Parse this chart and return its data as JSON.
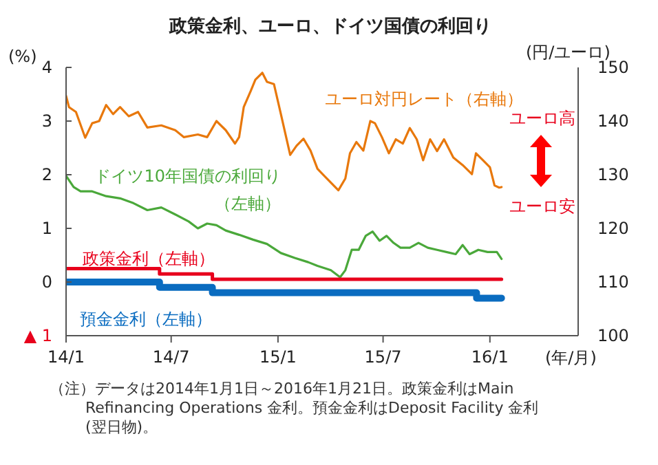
{
  "chart_data": {
    "type": "line",
    "title": "政策金利、ユーロ、ドイツ国債の利回り",
    "ylabel": "(%)",
    "y2label": "(円/ユーロ)",
    "xlabel": "(年/月)",
    "xlim": [
      "2014-01-01",
      "2016-06-01"
    ],
    "xticks": [
      {
        "value": "2014-01-01",
        "label": "14/1"
      },
      {
        "value": "2014-07-01",
        "label": "14/7"
      },
      {
        "value": "2015-01-01",
        "label": "15/1"
      },
      {
        "value": "2015-07-01",
        "label": "15/7"
      },
      {
        "value": "2016-01-01",
        "label": "16/1"
      }
    ],
    "ylim": [
      -1,
      4
    ],
    "yticks": [
      {
        "value": -1,
        "label": "▲ 1"
      },
      0,
      1,
      2,
      3,
      4
    ],
    "y2lim": [
      100,
      150
    ],
    "y2ticks": [
      100,
      110,
      120,
      130,
      140,
      150
    ],
    "legend": false,
    "marker": "none",
    "line_style": "solid",
    "series": [
      {
        "name": "ユーロ対円レート（右軸）",
        "type": "line",
        "axis": "y2",
        "color": "#e8780c",
        "x": [
          "2014-01-01",
          "2014-01-06",
          "2014-01-18",
          "2014-02-03",
          "2014-02-15",
          "2014-02-27",
          "2014-03-11",
          "2014-03-23",
          "2014-04-04",
          "2014-04-19",
          "2014-05-05",
          "2014-05-21",
          "2014-06-14",
          "2014-07-08",
          "2014-07-23",
          "2014-08-16",
          "2014-09-01",
          "2014-09-17",
          "2014-10-03",
          "2014-10-19",
          "2014-10-26",
          "2014-11-03",
          "2014-11-15",
          "2014-11-23",
          "2014-12-05",
          "2014-12-13",
          "2014-12-25",
          "2015-01-06",
          "2015-01-22",
          "2015-02-02",
          "2015-02-14",
          "2015-02-26",
          "2015-03-10",
          "2015-03-26",
          "2015-04-15",
          "2015-04-27",
          "2015-05-05",
          "2015-05-16",
          "2015-05-28",
          "2015-06-09",
          "2015-06-17",
          "2015-06-29",
          "2015-07-11",
          "2015-07-23",
          "2015-08-04",
          "2015-08-16",
          "2015-08-28",
          "2015-09-08",
          "2015-09-20",
          "2015-10-02",
          "2015-10-14",
          "2015-10-30",
          "2015-11-15",
          "2015-12-01",
          "2015-12-08",
          "2015-12-20",
          "2016-01-01",
          "2016-01-09",
          "2016-01-17",
          "2016-01-21"
        ],
        "values": [
          144.7,
          142.6,
          141.7,
          136.9,
          139.6,
          140.0,
          143.0,
          141.3,
          142.6,
          140.9,
          141.7,
          138.8,
          139.2,
          138.3,
          137.0,
          137.5,
          137.0,
          140.0,
          138.3,
          135.8,
          137.0,
          142.6,
          145.6,
          147.7,
          149.0,
          147.3,
          146.9,
          141.3,
          133.7,
          135.4,
          136.7,
          134.5,
          131.1,
          129.3,
          127.1,
          129.3,
          134.0,
          136.1,
          134.5,
          140.0,
          139.6,
          137.0,
          134.0,
          136.6,
          135.8,
          138.7,
          136.6,
          132.7,
          136.6,
          134.4,
          136.6,
          133.2,
          131.8,
          130.1,
          134.0,
          132.7,
          131.4,
          128.0,
          127.6,
          127.7
        ]
      },
      {
        "name": "ドイツ10年国債の利回り（左軸）",
        "type": "line",
        "color": "#4aa83a",
        "x": [
          "2014-01-01",
          "2014-01-14",
          "2014-01-26",
          "2014-02-15",
          "2014-03-11",
          "2014-04-04",
          "2014-04-27",
          "2014-05-21",
          "2014-06-14",
          "2014-07-08",
          "2014-07-31",
          "2014-08-16",
          "2014-09-01",
          "2014-09-17",
          "2014-10-03",
          "2014-10-26",
          "2014-11-19",
          "2014-12-13",
          "2015-01-06",
          "2015-01-30",
          "2015-02-22",
          "2015-03-10",
          "2015-04-02",
          "2015-04-18",
          "2015-04-27",
          "2015-05-08",
          "2015-05-20",
          "2015-06-01",
          "2015-06-13",
          "2015-06-25",
          "2015-07-07",
          "2015-07-19",
          "2015-07-31",
          "2015-08-16",
          "2015-08-31",
          "2015-09-16",
          "2015-10-02",
          "2015-10-18",
          "2015-11-03",
          "2015-11-15",
          "2015-11-27",
          "2015-12-12",
          "2015-12-28",
          "2016-01-13",
          "2016-01-21"
        ],
        "values": [
          1.98,
          1.77,
          1.69,
          1.69,
          1.6,
          1.56,
          1.47,
          1.34,
          1.39,
          1.26,
          1.13,
          1.0,
          1.09,
          1.06,
          0.96,
          0.88,
          0.79,
          0.71,
          0.54,
          0.45,
          0.37,
          0.3,
          0.22,
          0.09,
          0.22,
          0.6,
          0.6,
          0.86,
          0.94,
          0.77,
          0.86,
          0.73,
          0.64,
          0.64,
          0.73,
          0.64,
          0.6,
          0.56,
          0.52,
          0.69,
          0.52,
          0.6,
          0.56,
          0.56,
          0.43
        ]
      },
      {
        "name": "政策金利（左軸）",
        "type": "step",
        "color": "#e8001c",
        "x": [
          "2014-01-01",
          "2014-06-11",
          "2014-09-10",
          "2016-01-21"
        ],
        "values": [
          0.25,
          0.15,
          0.05,
          0.05
        ]
      },
      {
        "name": "預金金利（左軸）",
        "type": "step",
        "color": "#0a6cc0",
        "x": [
          "2014-01-01",
          "2014-06-11",
          "2014-09-10",
          "2015-12-09",
          "2016-01-21"
        ],
        "values": [
          0,
          -0.1,
          -0.2,
          -0.3,
          -0.3
        ]
      }
    ],
    "annotations": [
      "ユーロ高",
      "ユーロ安",
      "（注）データは2014年1月1日～2016年1月21日。政策金利はMain Refinancing Operations 金利。預金金利はDeposit Facility 金利(翌日物)。"
    ]
  }
}
